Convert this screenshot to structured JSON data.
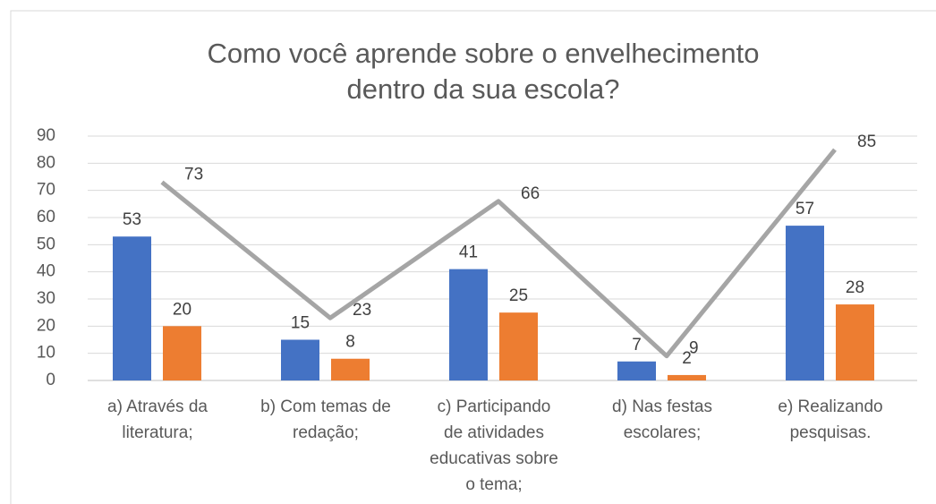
{
  "chart_data": {
    "type": "bar",
    "title": [
      "Como você aprende sobre o envelhecimento",
      "dentro da sua escola?"
    ],
    "categories": [
      [
        "a) Através da",
        "literatura;"
      ],
      [
        "b) Com temas de",
        "redação;"
      ],
      [
        "c) Participando",
        "de atividades",
        "educativas sobre",
        "o tema;"
      ],
      [
        "d) Nas festas",
        "escolares;"
      ],
      [
        "e) Realizando",
        "pesquisas."
      ]
    ],
    "series": [
      {
        "type": "bar",
        "color": "#4472c4",
        "values": [
          53,
          15,
          41,
          7,
          57
        ]
      },
      {
        "type": "bar",
        "color": "#ed7d31",
        "values": [
          20,
          8,
          25,
          2,
          28
        ]
      },
      {
        "type": "line",
        "color": "#a5a5a5",
        "values": [
          73,
          23,
          66,
          9,
          85
        ]
      }
    ],
    "ylim": [
      0,
      90
    ],
    "yticks": [
      0,
      10,
      20,
      30,
      40,
      50,
      60,
      70,
      80,
      90
    ],
    "grid": true
  }
}
